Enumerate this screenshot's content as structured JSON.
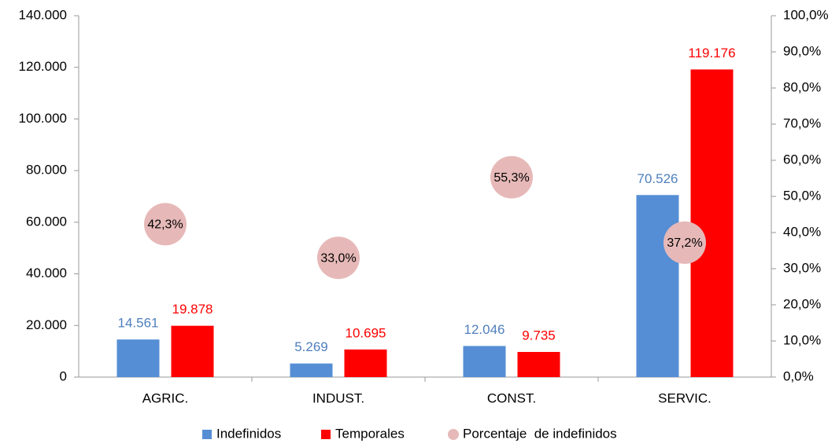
{
  "chart_data": {
    "type": "bar",
    "categories": [
      "AGRIC.",
      "INDUST.",
      "CONST.",
      "SERVIC."
    ],
    "series": [
      {
        "name": "Indefinidos",
        "color": "#558ed5",
        "label_color": "#4f7fbd",
        "values": [
          14561,
          5269,
          12046,
          70526
        ],
        "value_labels": [
          "14.561",
          "5.269",
          "12.046",
          "70.526"
        ]
      },
      {
        "name": "Temporales",
        "color": "#ff0000",
        "label_color": "#ff0000",
        "values": [
          19878,
          10695,
          9735,
          119176
        ],
        "value_labels": [
          "19.878",
          "10.695",
          "9.735",
          "119.176"
        ]
      },
      {
        "name": "Porcentaje  de indefinidos",
        "type": "scatter",
        "axis": "y2",
        "color": "#e6b9b8",
        "label_color": "#000000",
        "values": [
          42.3,
          33.0,
          55.3,
          37.2
        ],
        "value_labels": [
          "42,3%",
          "33,0%",
          "55,3%",
          "37,2%"
        ]
      }
    ],
    "ylim": [
      0,
      140000
    ],
    "yticks": [
      {
        "value": 0,
        "label": "0"
      },
      {
        "value": 20000,
        "label": "20.000"
      },
      {
        "value": 40000,
        "label": "40.000"
      },
      {
        "value": 60000,
        "label": "60.000"
      },
      {
        "value": 80000,
        "label": "80.000"
      },
      {
        "value": 100000,
        "label": "100.000"
      },
      {
        "value": 120000,
        "label": "120.000"
      },
      {
        "value": 140000,
        "label": "140.000"
      }
    ],
    "y2lim": [
      0,
      100
    ],
    "y2ticks": [
      {
        "value": 0,
        "label": "0,0%"
      },
      {
        "value": 10,
        "label": "10,0%"
      },
      {
        "value": 20,
        "label": "20,0%"
      },
      {
        "value": 30,
        "label": "30,0%"
      },
      {
        "value": 40,
        "label": "40,0%"
      },
      {
        "value": 50,
        "label": "50,0%"
      },
      {
        "value": 60,
        "label": "60,0%"
      },
      {
        "value": 70,
        "label": "70,0%"
      },
      {
        "value": 80,
        "label": "80,0%"
      },
      {
        "value": 90,
        "label": "90,0%"
      },
      {
        "value": 100,
        "label": "100,0%"
      }
    ],
    "grid": false,
    "legend": "bottom"
  }
}
